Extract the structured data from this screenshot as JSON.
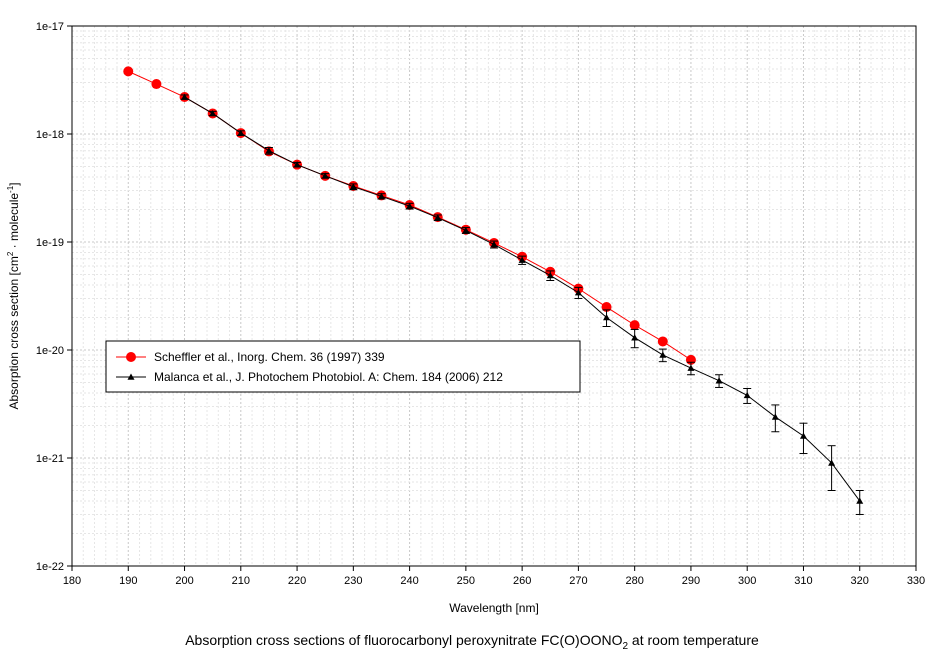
{
  "chart_data": {
    "type": "scatter",
    "xlabel": "Wavelength [nm]",
    "ylabel_parts": [
      "Absorption cross section [cm",
      "2",
      " · molecule",
      "-1",
      "]"
    ],
    "xlim": [
      180,
      330
    ],
    "x_ticks": [
      180,
      190,
      200,
      210,
      220,
      230,
      240,
      250,
      260,
      270,
      280,
      290,
      300,
      310,
      320,
      330
    ],
    "y_scale": "log",
    "ylim": [
      1e-22,
      1e-17
    ],
    "y_ticks": [
      {
        "value": 1e-22,
        "label": "1e-22"
      },
      {
        "value": 1e-21,
        "label": "1e-21"
      },
      {
        "value": 1e-20,
        "label": "1e-20"
      },
      {
        "value": 1e-19,
        "label": "1e-19"
      },
      {
        "value": 1e-18,
        "label": "1e-18"
      },
      {
        "value": 1e-17,
        "label": "1e-17"
      }
    ],
    "grid": true,
    "legend_position": "middle-left",
    "series": [
      {
        "name": "Scheffler et al., Inorg. Chem. 36 (1997) 339",
        "color": "#ff0000",
        "marker": "circle",
        "x": [
          190,
          195,
          200,
          205,
          210,
          215,
          220,
          225,
          230,
          235,
          240,
          245,
          250,
          255,
          260,
          265,
          270,
          275,
          280,
          285,
          290
        ],
        "y": [
          3.8e-18,
          2.9e-18,
          2.2e-18,
          1.55e-18,
          1.02e-18,
          6.9e-19,
          5.2e-19,
          4.1e-19,
          3.3e-19,
          2.7e-19,
          2.2e-19,
          1.7e-19,
          1.3e-19,
          9.8e-20,
          7.3e-20,
          5.3e-20,
          3.7e-20,
          2.5e-20,
          1.7e-20,
          1.2e-20,
          8.1e-21
        ]
      },
      {
        "name": "Malanca et al., J. Photochem Photobiol. A: Chem. 184 (2006) 212",
        "color": "#000000",
        "marker": "triangle",
        "x": [
          200,
          205,
          210,
          215,
          220,
          225,
          230,
          235,
          240,
          245,
          250,
          255,
          260,
          265,
          270,
          275,
          280,
          285,
          290,
          295,
          300,
          305,
          310,
          315,
          320
        ],
        "y": [
          2.2e-18,
          1.55e-18,
          1.02e-18,
          7e-19,
          5.2e-19,
          4.1e-19,
          3.25e-19,
          2.65e-19,
          2.15e-19,
          1.68e-19,
          1.28e-19,
          9.5e-20,
          6.8e-20,
          4.9e-20,
          3.4e-20,
          2e-20,
          1.3e-20,
          9e-21,
          6.8e-21,
          5.2e-21,
          3.8e-21,
          2.4e-21,
          1.6e-21,
          9e-22,
          4e-22
        ],
        "err_low": [
          2.1e-18,
          1.48e-18,
          9.7e-19,
          6.5e-19,
          4.95e-19,
          3.9e-19,
          3.05e-19,
          2.5e-19,
          2.02e-19,
          1.58e-19,
          1.2e-19,
          8.8e-20,
          6.2e-20,
          4.4e-20,
          3e-20,
          1.65e-20,
          1.05e-20,
          7.8e-21,
          5.9e-21,
          4.5e-21,
          3.2e-21,
          1.75e-21,
          1.1e-21,
          5e-22,
          3e-22
        ],
        "err_high": [
          2.3e-18,
          1.62e-18,
          1.07e-18,
          7.5e-19,
          5.45e-19,
          4.3e-19,
          3.45e-19,
          2.8e-19,
          2.28e-19,
          1.78e-19,
          1.36e-19,
          1.02e-19,
          7.4e-20,
          5.4e-20,
          3.8e-20,
          2.35e-20,
          1.55e-20,
          1.02e-20,
          7.7e-21,
          5.9e-21,
          4.4e-21,
          3.1e-21,
          2.1e-21,
          1.3e-21,
          5e-22
        ]
      }
    ],
    "caption_parts": [
      "Absorption cross sections of fluorocarbonyl peroxynitrate FC(O)OONO",
      "2",
      " at room temperature"
    ]
  }
}
